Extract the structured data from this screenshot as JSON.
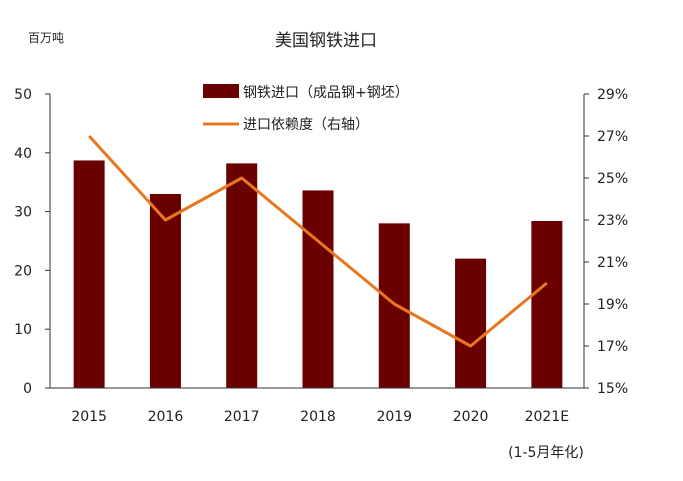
{
  "chart_data": {
    "type": "bar",
    "title": "美国钢铁进口",
    "unit_label": "百万吨",
    "categories": [
      "2015",
      "2016",
      "2017",
      "2018",
      "2019",
      "2020",
      "2021E"
    ],
    "category_note": "(1-5月年化)",
    "left_axis": {
      "ylim": [
        0,
        50
      ],
      "ticks": [
        "0",
        "10",
        "20",
        "30",
        "40",
        "50"
      ],
      "tick_values": [
        0,
        10,
        20,
        30,
        40,
        50
      ]
    },
    "right_axis": {
      "ylim": [
        15,
        29
      ],
      "ticks": [
        "15%",
        "17%",
        "19%",
        "21%",
        "23%",
        "25%",
        "27%",
        "29%"
      ],
      "tick_values": [
        15,
        17,
        19,
        21,
        23,
        25,
        27,
        29
      ]
    },
    "series": [
      {
        "name": "钢铁进口（成品钢+钢坯）",
        "type": "bar",
        "axis": "left",
        "color": "#6b0000",
        "values": [
          38.7,
          33.0,
          38.2,
          33.6,
          28.0,
          22.0,
          28.4
        ]
      },
      {
        "name": "进口依赖度（右轴）",
        "type": "line",
        "axis": "right",
        "color": "#e87722",
        "values": [
          27,
          23,
          25,
          22,
          19,
          17,
          20
        ]
      }
    ],
    "legend_position": "top-center",
    "grid": false
  }
}
